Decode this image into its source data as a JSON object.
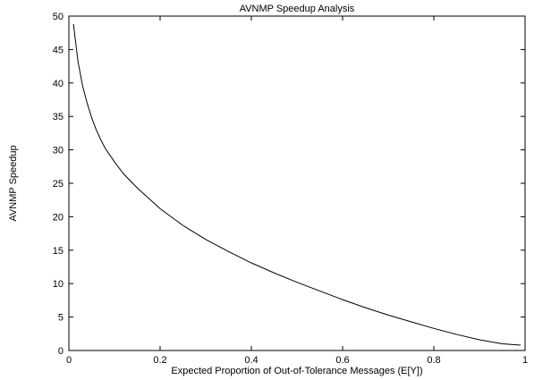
{
  "chart_data": {
    "type": "line",
    "title": "AVNMP Speedup Analysis",
    "xlabel": "Expected Proportion of Out-of-Tolerance Messages (E[Y])",
    "ylabel": "AVNMP Speedup",
    "xlim": [
      0,
      1
    ],
    "ylim": [
      0,
      50
    ],
    "x_ticks": [
      0,
      0.2,
      0.4,
      0.6,
      0.8,
      1
    ],
    "x_tick_labels": [
      "0",
      "0.2",
      "0.4",
      "0.6",
      "0.8",
      "1"
    ],
    "y_ticks": [
      0,
      5,
      10,
      15,
      20,
      25,
      30,
      35,
      40,
      45,
      50
    ],
    "y_tick_labels": [
      "0",
      "5",
      "10",
      "15",
      "20",
      "25",
      "30",
      "35",
      "40",
      "45",
      "50"
    ],
    "grid": false,
    "legend": "none",
    "series": [
      {
        "x": [
          0.01,
          0.02,
          0.03,
          0.04,
          0.05,
          0.06,
          0.07,
          0.08,
          0.1,
          0.12,
          0.15,
          0.2,
          0.25,
          0.3,
          0.35,
          0.4,
          0.45,
          0.5,
          0.55,
          0.6,
          0.65,
          0.7,
          0.75,
          0.8,
          0.85,
          0.9,
          0.95,
          0.99
        ],
        "y": [
          48.8,
          43.2,
          39.6,
          37.0,
          34.8,
          33.0,
          31.5,
          30.2,
          28.2,
          26.4,
          24.3,
          21.2,
          18.7,
          16.6,
          14.8,
          13.1,
          11.6,
          10.2,
          8.9,
          7.6,
          6.4,
          5.3,
          4.3,
          3.3,
          2.4,
          1.6,
          1.0,
          0.8
        ],
        "color": "#000000"
      }
    ]
  }
}
